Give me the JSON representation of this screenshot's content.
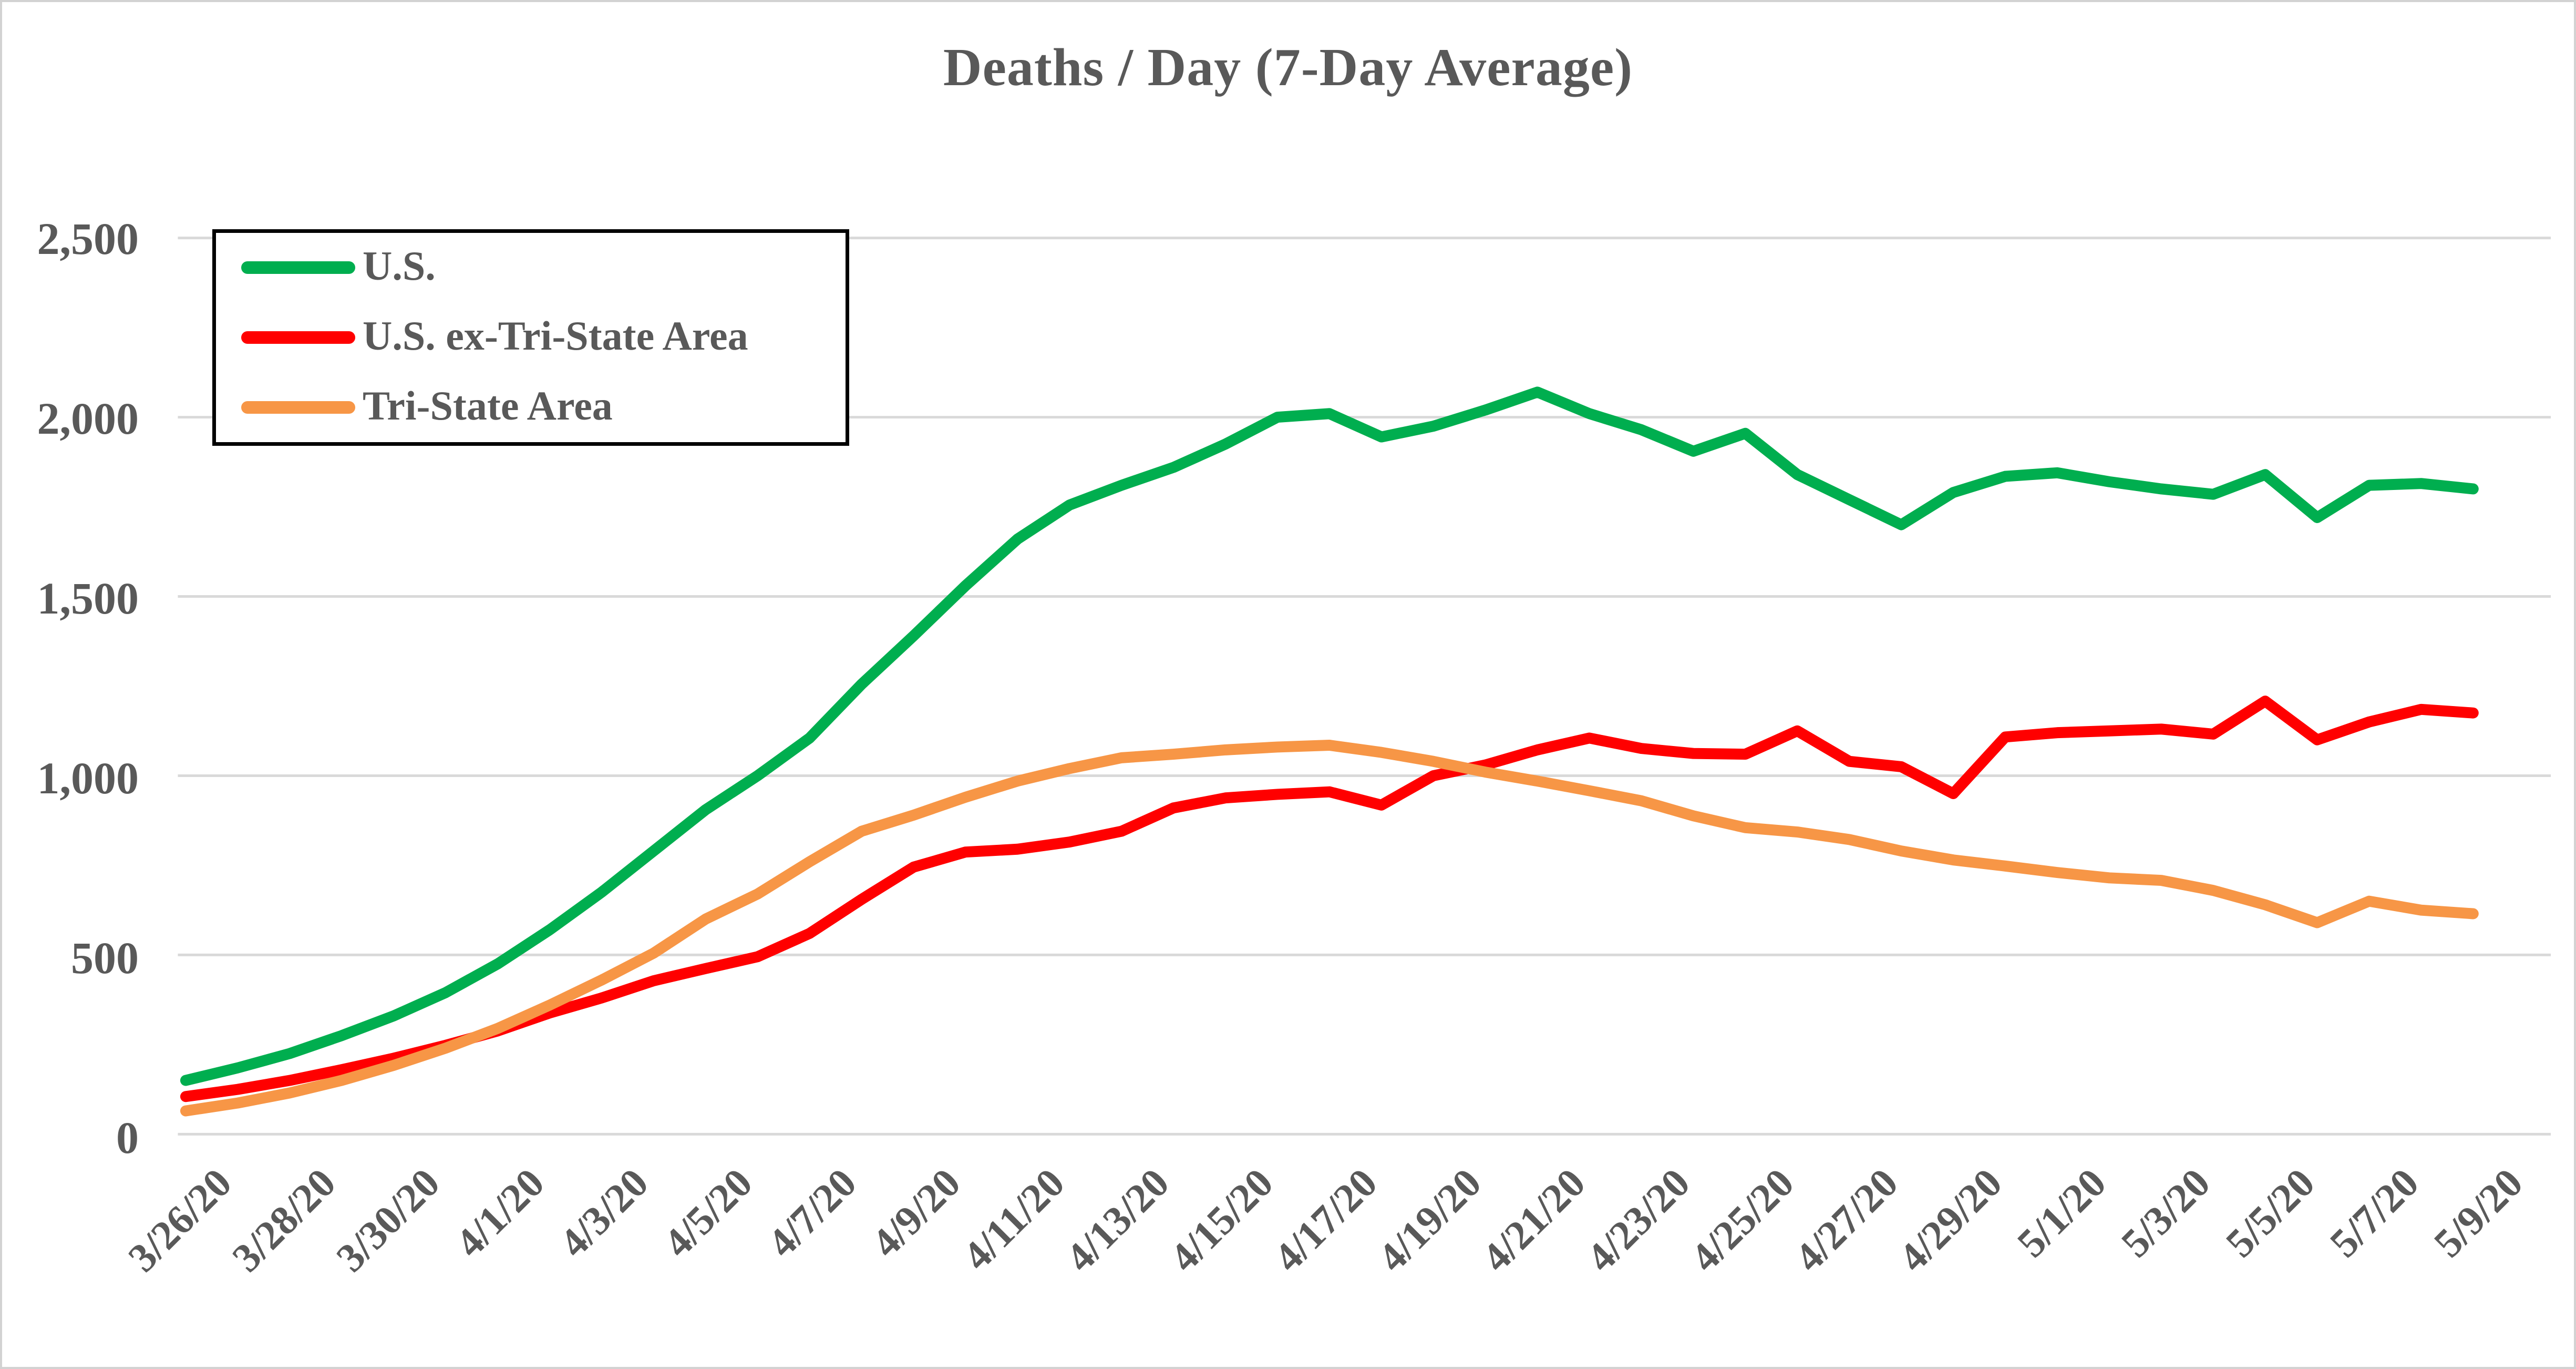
{
  "chart_data": {
    "type": "line",
    "title": "Deaths / Day (7-Day Average)",
    "xlabel": "",
    "ylabel": "",
    "ylim": [
      0,
      2500
    ],
    "y_tick_labels": [
      "0",
      "500",
      "1,000",
      "1,500",
      "2,000",
      "2,500"
    ],
    "y_tick_values": [
      0,
      500,
      1000,
      1500,
      2000,
      2500
    ],
    "grid": true,
    "legend_position": "top-left",
    "x_tick_every": 2,
    "dates": [
      "3/26/20",
      "3/27/20",
      "3/28/20",
      "3/29/20",
      "3/30/20",
      "3/31/20",
      "4/1/20",
      "4/2/20",
      "4/3/20",
      "4/4/20",
      "4/5/20",
      "4/6/20",
      "4/7/20",
      "4/8/20",
      "4/9/20",
      "4/10/20",
      "4/11/20",
      "4/12/20",
      "4/13/20",
      "4/14/20",
      "4/15/20",
      "4/16/20",
      "4/17/20",
      "4/18/20",
      "4/19/20",
      "4/20/20",
      "4/21/20",
      "4/22/20",
      "4/23/20",
      "4/24/20",
      "4/25/20",
      "4/26/20",
      "4/27/20",
      "4/28/20",
      "4/29/20",
      "4/30/20",
      "5/1/20",
      "5/2/20",
      "5/3/20",
      "5/4/20",
      "5/5/20",
      "5/6/20",
      "5/7/20",
      "5/8/20",
      "5/9/20"
    ],
    "x_tick_labels": [
      "3/26/20",
      "3/28/20",
      "3/30/20",
      "4/1/20",
      "4/3/20",
      "4/5/20",
      "4/7/20",
      "4/9/20",
      "4/11/20",
      "4/13/20",
      "4/15/20",
      "4/17/20",
      "4/19/20",
      "4/21/20",
      "4/23/20",
      "4/25/20",
      "4/27/20",
      "4/29/20",
      "5/1/20",
      "5/3/20",
      "5/5/20",
      "5/7/20",
      "5/9/20"
    ],
    "series": [
      {
        "name": "U.S.",
        "color": "#00AE4F",
        "values": [
          150,
          185,
          225,
          275,
          330,
          395,
          475,
          570,
          675,
          790,
          905,
          1000,
          1105,
          1255,
          1390,
          1530,
          1660,
          1755,
          1810,
          1860,
          1925,
          2000,
          2010,
          1945,
          1975,
          2020,
          2070,
          2010,
          1965,
          1905,
          1955,
          1840,
          1770,
          1700,
          1790,
          1835,
          1845,
          1820,
          1800,
          1785,
          1840,
          1720,
          1810,
          1815,
          1800
        ]
      },
      {
        "name": "U.S. ex-Tri-State Area",
        "color": "#FF0000",
        "values": [
          105,
          125,
          150,
          180,
          212,
          248,
          288,
          338,
          380,
          428,
          462,
          495,
          560,
          655,
          745,
          787,
          795,
          815,
          845,
          910,
          938,
          948,
          955,
          918,
          1000,
          1030,
          1072,
          1105,
          1076,
          1062,
          1060,
          1125,
          1040,
          1025,
          950,
          1108,
          1120,
          1125,
          1130,
          1116,
          1208,
          1100,
          1150,
          1185,
          1175
        ]
      },
      {
        "name": "Tri-State Area",
        "color": "#F79646",
        "values": [
          65,
          87,
          115,
          150,
          192,
          240,
          295,
          360,
          430,
          505,
          600,
          670,
          760,
          845,
          890,
          940,
          985,
          1020,
          1050,
          1060,
          1072,
          1080,
          1085,
          1065,
          1040,
          1010,
          985,
          958,
          930,
          888,
          855,
          843,
          822,
          790,
          765,
          748,
          730,
          715,
          708,
          680,
          640,
          590,
          650,
          625,
          615
        ]
      }
    ]
  },
  "legend": {
    "items": [
      {
        "label": "U.S.",
        "color": "#00AE4F"
      },
      {
        "label": "U.S. ex-Tri-State Area",
        "color": "#FF0000"
      },
      {
        "label": "Tri-State Area",
        "color": "#F79646"
      }
    ]
  },
  "style": {
    "text_color": "#595959",
    "gridline_color": "#D9D9D9",
    "background_color": "#FFFFFF",
    "legend_border_color": "#000000"
  }
}
